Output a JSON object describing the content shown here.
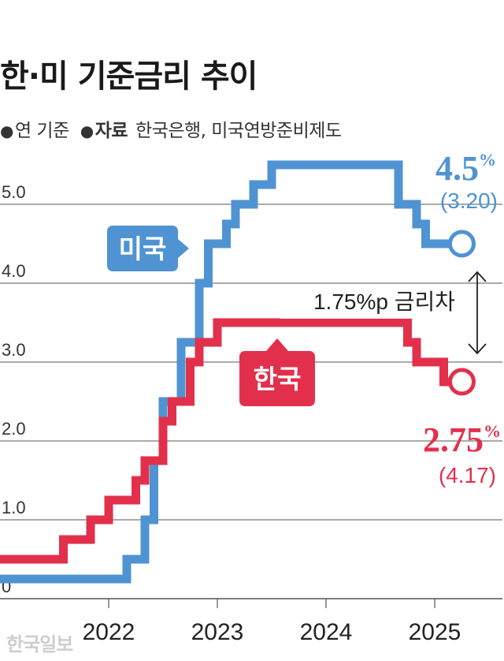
{
  "title": "한·미 기준금리 추이",
  "unit_note": "연 기준",
  "source_label": "자료",
  "source_text": "한국은행, 미국연방준비제도",
  "watermark": "한국일보",
  "colors": {
    "us": "#4f93d3",
    "kr": "#e2304c",
    "grid": "#555555",
    "text": "#222222"
  },
  "chart_data": {
    "type": "line",
    "step": true,
    "title": "한·미 기준금리 추이",
    "xlabel": "",
    "ylabel": "",
    "y_ticks": [
      0,
      1.0,
      2.0,
      3.0,
      4.0,
      5.0
    ],
    "y_tick_labels": [
      "0",
      "1.0",
      "2.0",
      "3.0",
      "4.0",
      "5.0"
    ],
    "x_ticks": [
      2022,
      2023,
      2024,
      2025
    ],
    "x_tick_labels": [
      "2022",
      "2023",
      "2024",
      "2025"
    ],
    "xlim": [
      "2021-01",
      "2025-05"
    ],
    "ylim": [
      0,
      5.5
    ],
    "grid": true,
    "series": [
      {
        "name": "미국",
        "color": "#4f93d3",
        "points": [
          [
            "2021-01",
            0.25
          ],
          [
            "2022-03",
            0.5
          ],
          [
            "2022-05",
            1.0
          ],
          [
            "2022-06",
            1.75
          ],
          [
            "2022-07",
            2.5
          ],
          [
            "2022-09",
            3.25
          ],
          [
            "2022-11",
            4.0
          ],
          [
            "2022-12",
            4.5
          ],
          [
            "2023-02",
            4.75
          ],
          [
            "2023-03",
            5.0
          ],
          [
            "2023-05",
            5.25
          ],
          [
            "2023-07",
            5.5
          ],
          [
            "2024-09",
            5.0
          ],
          [
            "2024-11",
            4.75
          ],
          [
            "2024-12",
            4.5
          ],
          [
            "2025-04",
            4.5
          ]
        ],
        "end_label": "4.5%",
        "end_sub_label": "(3.20)"
      },
      {
        "name": "한국",
        "color": "#e2304c",
        "points": [
          [
            "2021-01",
            0.5
          ],
          [
            "2021-08",
            0.75
          ],
          [
            "2021-11",
            1.0
          ],
          [
            "2022-01",
            1.25
          ],
          [
            "2022-04",
            1.5
          ],
          [
            "2022-05",
            1.75
          ],
          [
            "2022-07",
            2.25
          ],
          [
            "2022-08",
            2.5
          ],
          [
            "2022-10",
            3.0
          ],
          [
            "2022-11",
            3.25
          ],
          [
            "2023-01",
            3.5
          ],
          [
            "2024-10",
            3.25
          ],
          [
            "2024-11",
            3.0
          ],
          [
            "2025-02",
            2.75
          ],
          [
            "2025-04",
            2.75
          ]
        ],
        "end_label": "2.75%",
        "end_sub_label": "(4.17)"
      }
    ],
    "annotations": [
      {
        "text": "1.75%p 금리차",
        "between": [
          "미국",
          "한국"
        ],
        "at": "2025-04"
      }
    ]
  }
}
